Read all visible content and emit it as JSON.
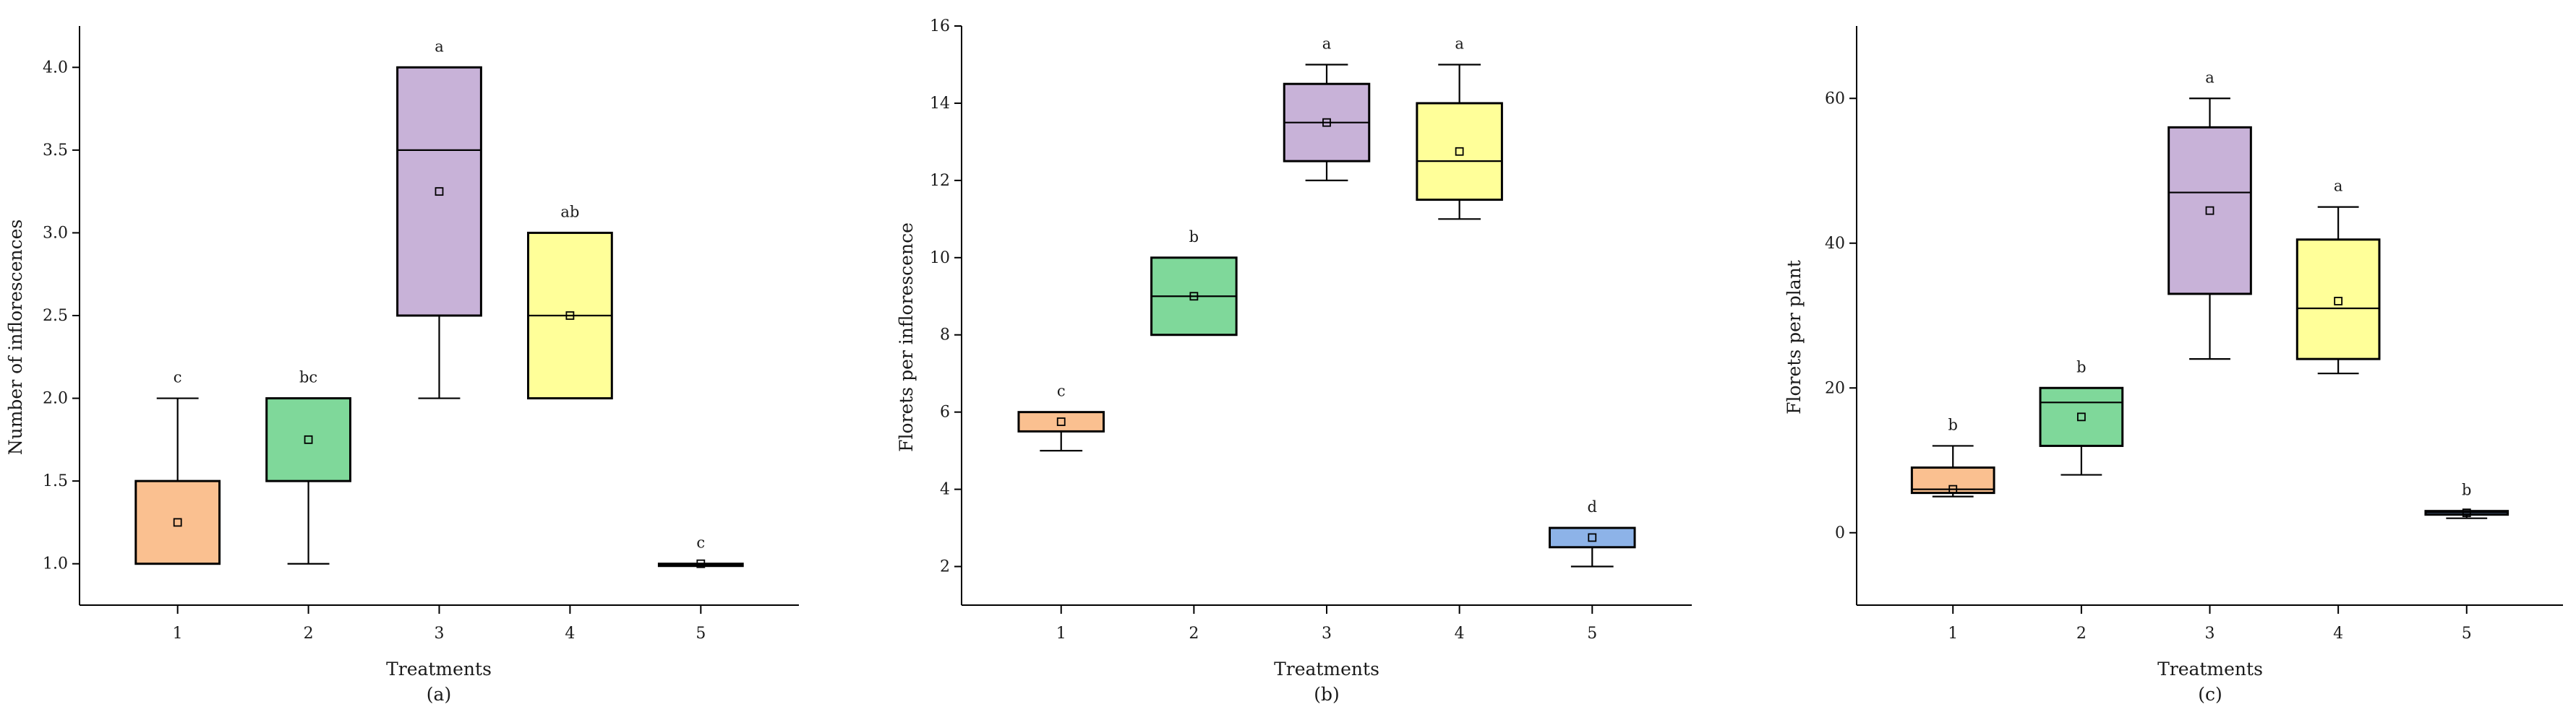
{
  "chart_data": [
    {
      "type": "box",
      "panel_label": "(a)",
      "xlabel": "Treatments",
      "ylabel": "Number of inflorescences",
      "ylim": [
        0.75,
        4.25
      ],
      "yticks": [
        "1.0",
        "1.5",
        "2.0",
        "2.5",
        "3.0",
        "3.5",
        "4.0"
      ],
      "categories": [
        "1",
        "2",
        "3",
        "4",
        "5"
      ],
      "boxes": [
        {
          "category": "1",
          "min": 1.0,
          "q1": 1.0,
          "median": 1.0,
          "q3": 1.5,
          "max": 2.0,
          "mean": 1.25,
          "color": "#FAC090",
          "sig": "c"
        },
        {
          "category": "2",
          "min": 1.0,
          "q1": 1.5,
          "median": 2.0,
          "q3": 2.0,
          "max": 2.0,
          "mean": 1.75,
          "color": "#7FD89A",
          "sig": "bc"
        },
        {
          "category": "3",
          "min": 2.0,
          "q1": 2.5,
          "median": 3.5,
          "q3": 4.0,
          "max": 4.0,
          "mean": 3.25,
          "color": "#C8B2D8",
          "sig": "a"
        },
        {
          "category": "4",
          "min": 2.0,
          "q1": 2.0,
          "median": 2.5,
          "q3": 3.0,
          "max": 3.0,
          "mean": 2.5,
          "color": "#FFFF99",
          "sig": "ab"
        },
        {
          "category": "5",
          "min": 1.0,
          "q1": 1.0,
          "median": 1.0,
          "q3": 1.0,
          "max": 1.0,
          "mean": 1.0,
          "color": "#8DB3E8",
          "sig": "c"
        }
      ]
    },
    {
      "type": "box",
      "panel_label": "(b)",
      "xlabel": "Treatments",
      "ylabel": "Florets per inflorescence",
      "ylim": [
        1,
        16
      ],
      "yticks": [
        "2",
        "4",
        "6",
        "8",
        "10",
        "12",
        "14",
        "16"
      ],
      "categories": [
        "1",
        "2",
        "3",
        "4",
        "5"
      ],
      "boxes": [
        {
          "category": "1",
          "min": 5.0,
          "q1": 5.5,
          "median": 6.0,
          "q3": 6.0,
          "max": 6.0,
          "mean": 5.75,
          "color": "#FAC090",
          "sig": "c"
        },
        {
          "category": "2",
          "min": 8.0,
          "q1": 8.0,
          "median": 9.0,
          "q3": 10.0,
          "max": 10.0,
          "mean": 9.0,
          "color": "#7FD89A",
          "sig": "b"
        },
        {
          "category": "3",
          "min": 12.0,
          "q1": 12.5,
          "median": 13.5,
          "q3": 14.5,
          "max": 15.0,
          "mean": 13.5,
          "color": "#C8B2D8",
          "sig": "a"
        },
        {
          "category": "4",
          "min": 11.0,
          "q1": 11.5,
          "median": 12.5,
          "q3": 14.0,
          "max": 15.0,
          "mean": 12.75,
          "color": "#FFFF99",
          "sig": "a"
        },
        {
          "category": "5",
          "min": 2.0,
          "q1": 2.5,
          "median": 2.5,
          "q3": 3.0,
          "max": 3.0,
          "mean": 2.75,
          "color": "#8DB3E8",
          "sig": "d"
        }
      ]
    },
    {
      "type": "box",
      "panel_label": "(c)",
      "xlabel": "Treatments",
      "ylabel": "Florets per plant",
      "ylim": [
        -10,
        70
      ],
      "yticks": [
        "0",
        "20",
        "40",
        "60"
      ],
      "categories": [
        "1",
        "2",
        "3",
        "4",
        "5"
      ],
      "boxes": [
        {
          "category": "1",
          "min": 5.0,
          "q1": 5.5,
          "median": 6.0,
          "q3": 9.0,
          "max": 12.0,
          "mean": 6.0,
          "color": "#FAC090",
          "sig": "b"
        },
        {
          "category": "2",
          "min": 8.0,
          "q1": 12.0,
          "median": 18.0,
          "q3": 20.0,
          "max": 20.0,
          "mean": 16.0,
          "color": "#7FD89A",
          "sig": "b"
        },
        {
          "category": "3",
          "min": 24.0,
          "q1": 33.0,
          "median": 47.0,
          "q3": 56.0,
          "max": 60.0,
          "mean": 44.5,
          "color": "#C8B2D8",
          "sig": "a"
        },
        {
          "category": "4",
          "min": 22.0,
          "q1": 24.0,
          "median": 31.0,
          "q3": 40.5,
          "max": 45.0,
          "mean": 32.0,
          "color": "#FFFF99",
          "sig": "a"
        },
        {
          "category": "5",
          "min": 2.0,
          "q1": 2.5,
          "median": 2.8,
          "q3": 3.0,
          "max": 3.0,
          "mean": 2.75,
          "color": "#8DB3E8",
          "sig": "b"
        }
      ]
    }
  ]
}
